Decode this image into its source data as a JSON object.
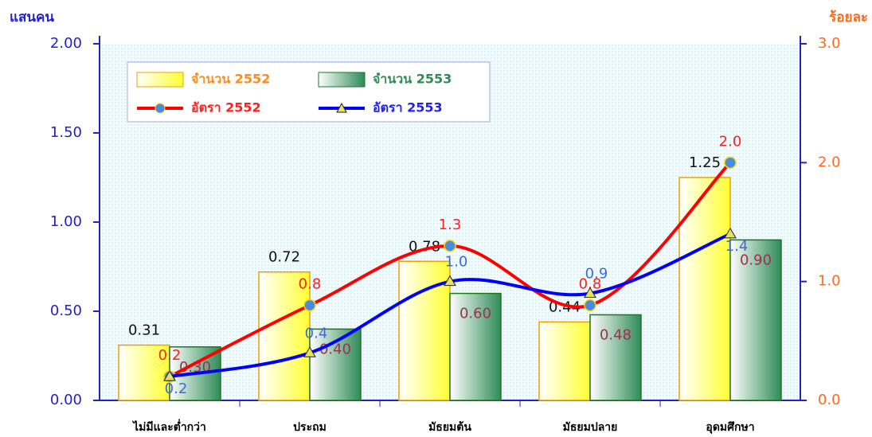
{
  "chart_data": {
    "type": "bar",
    "y_label": "แสนคน",
    "y2_label": "ร้อยละ",
    "categories": [
      "ไม่มีและต่ำกว่า",
      "ประถม",
      "มัธยมต้น",
      "มัธยมปลาย",
      "อุดมศึกษา"
    ],
    "series": [
      {
        "name": "จำนวน 2552",
        "type": "bar",
        "color": "#ffff33",
        "values": [
          0.31,
          0.72,
          0.78,
          0.44,
          1.25
        ],
        "value_labels": [
          "0.31",
          "0.72",
          "0.78",
          "0.44",
          "1.25"
        ]
      },
      {
        "name": "จำนวน 2553",
        "type": "bar",
        "color": "#2e8b57",
        "values": [
          0.3,
          0.4,
          0.6,
          0.48,
          0.9
        ],
        "value_labels": [
          "0.30",
          "0.40",
          "0.60",
          "0.48",
          "0.90"
        ]
      },
      {
        "name": "อัตรา 2552",
        "type": "line",
        "axis": "y2",
        "color": "#ff0000",
        "values": [
          0.2,
          0.8,
          1.3,
          0.8,
          2.0
        ],
        "value_labels": [
          "0.2",
          "0.8",
          "1.3",
          "0.8",
          "2.0"
        ]
      },
      {
        "name": "อัตรา 2553",
        "type": "line",
        "axis": "y2",
        "color": "#0000ff",
        "values": [
          0.2,
          0.4,
          1.0,
          0.9,
          1.4
        ],
        "value_labels": [
          "0.2",
          "0.4",
          "1.0",
          "0.9",
          "1.4"
        ]
      }
    ],
    "ylim": [
      0,
      2
    ],
    "yticks": [
      {
        "value": 0,
        "label": "0.00"
      },
      {
        "value": 0.5,
        "label": "0.50"
      },
      {
        "value": 1,
        "label": "1.00"
      },
      {
        "value": 1.5,
        "label": "1.50"
      },
      {
        "value": 2,
        "label": "2.00"
      }
    ],
    "y2lim": [
      0,
      3
    ],
    "y2ticks": [
      {
        "value": 0,
        "label": "0.0"
      },
      {
        "value": 1,
        "label": "1.0"
      },
      {
        "value": 2,
        "label": "2.0"
      },
      {
        "value": 3,
        "label": "3.0"
      }
    ]
  }
}
